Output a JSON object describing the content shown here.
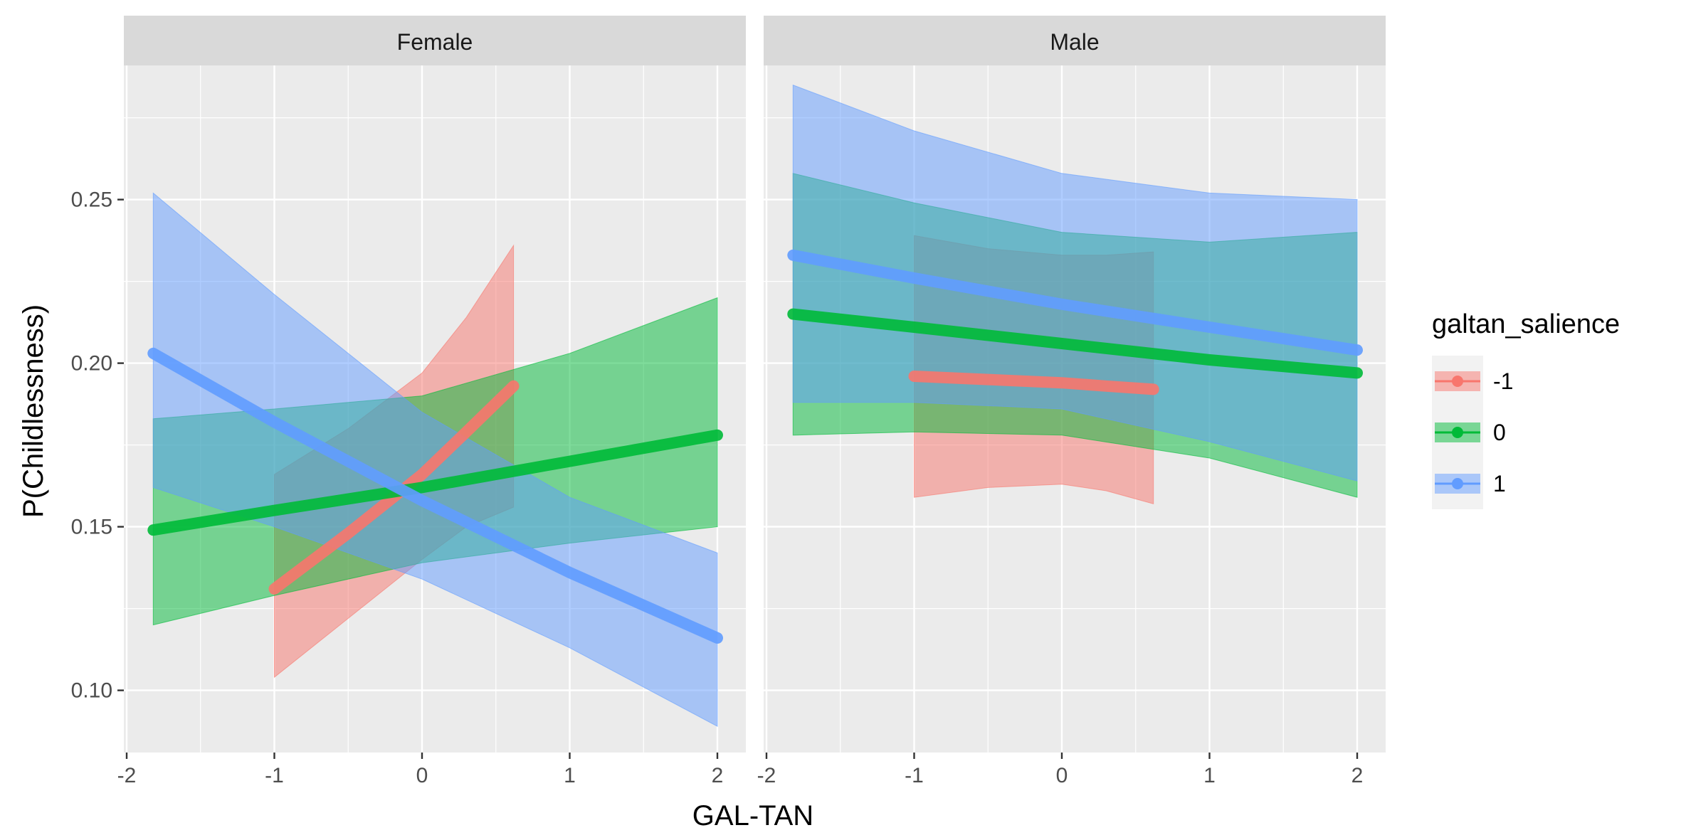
{
  "chart_data": {
    "type": "line",
    "xlabel": "GAL-TAN",
    "ylabel": "P(Childlessness)",
    "xlim": [
      -2.05,
      2.2
    ],
    "ylim": [
      0.081,
      0.291
    ],
    "x_ticks": [
      -2,
      -1,
      0,
      1,
      2
    ],
    "y_ticks": [
      0.1,
      0.15,
      0.2,
      0.25
    ],
    "y_tick_labels": [
      "0.10",
      "0.15",
      "0.20",
      "0.25"
    ],
    "grid": true,
    "legend": {
      "title": "galtan_salience",
      "position": "right",
      "entries": [
        "-1",
        "0",
        "1"
      ]
    },
    "colors": {
      "-1": "#F8766D",
      "0": "#00BA38",
      "1": "#619CFF"
    },
    "panels": [
      {
        "label": "Female",
        "series": [
          {
            "key": "-1",
            "x": [
              -1.0,
              -0.5,
              0.0,
              0.3,
              0.62
            ],
            "y": [
              0.131,
              0.148,
              0.166,
              0.179,
              0.193
            ],
            "lower": [
              0.104,
              0.122,
              0.14,
              0.15,
              0.156
            ],
            "upper": [
              0.166,
              0.18,
              0.197,
              0.214,
              0.236
            ]
          },
          {
            "key": "0",
            "x": [
              -1.82,
              -1.0,
              0.0,
              1.0,
              2.0
            ],
            "y": [
              0.149,
              0.155,
              0.162,
              0.17,
              0.178
            ],
            "lower": [
              0.12,
              0.129,
              0.139,
              0.145,
              0.15
            ],
            "upper": [
              0.183,
              0.186,
              0.19,
              0.203,
              0.22
            ]
          },
          {
            "key": "1",
            "x": [
              -1.82,
              -1.0,
              0.0,
              1.0,
              2.0
            ],
            "y": [
              0.203,
              0.182,
              0.158,
              0.136,
              0.116
            ],
            "lower": [
              0.162,
              0.15,
              0.134,
              0.113,
              0.089
            ],
            "upper": [
              0.252,
              0.221,
              0.185,
              0.159,
              0.142
            ]
          }
        ]
      },
      {
        "label": "Male",
        "series": [
          {
            "key": "-1",
            "x": [
              -1.0,
              -0.5,
              0.0,
              0.3,
              0.62
            ],
            "y": [
              0.196,
              0.195,
              0.194,
              0.193,
              0.192
            ],
            "lower": [
              0.159,
              0.162,
              0.163,
              0.161,
              0.157
            ],
            "upper": [
              0.239,
              0.235,
              0.233,
              0.233,
              0.234
            ]
          },
          {
            "key": "0",
            "x": [
              -1.82,
              -1.0,
              0.0,
              1.0,
              2.0
            ],
            "y": [
              0.215,
              0.211,
              0.206,
              0.201,
              0.197
            ],
            "lower": [
              0.178,
              0.179,
              0.178,
              0.171,
              0.159
            ],
            "upper": [
              0.258,
              0.249,
              0.24,
              0.237,
              0.24
            ]
          },
          {
            "key": "1",
            "x": [
              -1.82,
              -1.0,
              0.0,
              1.0,
              2.0
            ],
            "y": [
              0.233,
              0.226,
              0.218,
              0.211,
              0.204
            ],
            "lower": [
              0.188,
              0.188,
              0.186,
              0.176,
              0.164
            ],
            "upper": [
              0.285,
              0.271,
              0.258,
              0.252,
              0.25
            ]
          }
        ]
      }
    ]
  }
}
